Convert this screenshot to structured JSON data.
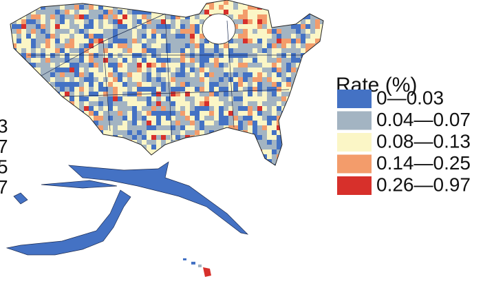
{
  "legend": {
    "title": "Rate (%)",
    "items": [
      {
        "label": "0—0.03",
        "color": "#4472c4"
      },
      {
        "label": "0.04—0.07",
        "color": "#a3b4c2"
      },
      {
        "label": "0.08—0.13",
        "color": "#fbf6c6"
      },
      {
        "label": "0.14—0.25",
        "color": "#f39c6b"
      },
      {
        "label": "0.26—0.97",
        "color": "#d7302b"
      }
    ]
  },
  "left_fragments": [
    "3",
    "7",
    "5",
    "7"
  ]
}
